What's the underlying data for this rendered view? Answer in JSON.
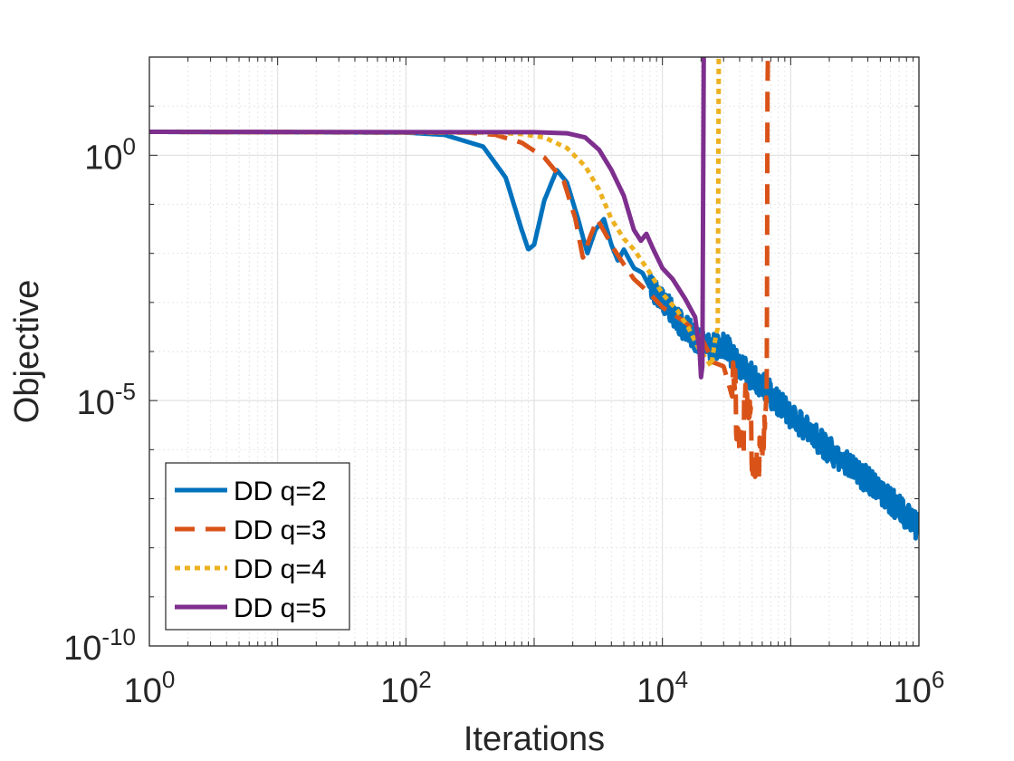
{
  "chart_data": {
    "type": "line",
    "title": "",
    "xlabel": "Iterations",
    "ylabel": "Objective",
    "xscale": "log",
    "yscale": "log",
    "xlim": [
      1,
      1000000
    ],
    "ylim": [
      1e-10,
      100
    ],
    "grid": true,
    "minor_grid": true,
    "legend_position": "bottom-left",
    "x_ticks": [
      {
        "value": 1,
        "base": "10",
        "exp": "0"
      },
      {
        "value": 100,
        "base": "10",
        "exp": "2"
      },
      {
        "value": 10000,
        "base": "10",
        "exp": "4"
      },
      {
        "value": 1000000,
        "base": "10",
        "exp": "6"
      }
    ],
    "y_ticks": [
      {
        "value": 1e-10,
        "base": "10",
        "exp": "-10"
      },
      {
        "value": 1e-05,
        "base": "10",
        "exp": "-5"
      },
      {
        "value": 1,
        "base": "10",
        "exp": "0"
      }
    ],
    "series": [
      {
        "name": "DD q=2",
        "color": "#0072BD",
        "style": "solid",
        "points": [
          [
            1,
            3.0
          ],
          [
            100,
            2.9
          ],
          [
            200,
            2.6
          ],
          [
            400,
            1.5
          ],
          [
            600,
            0.35
          ],
          [
            800,
            0.03
          ],
          [
            900,
            0.012
          ],
          [
            1000,
            0.015
          ],
          [
            1200,
            0.12
          ],
          [
            1500,
            0.5
          ],
          [
            1800,
            0.28
          ],
          [
            2200,
            0.05
          ],
          [
            2600,
            0.01
          ],
          [
            3000,
            0.03
          ],
          [
            3500,
            0.05
          ],
          [
            4000,
            0.015
          ],
          [
            4500,
            0.007
          ],
          [
            5000,
            0.012
          ],
          [
            6000,
            0.005
          ],
          [
            7000,
            0.004
          ],
          [
            8000,
            0.002
          ],
          [
            10000,
            0.001
          ],
          [
            12000,
            0.0006
          ],
          [
            15000,
            0.0003
          ],
          [
            20000,
            0.00015
          ],
          [
            25000,
            0.00012
          ],
          [
            30000,
            0.00015
          ],
          [
            40000,
            5e-05
          ],
          [
            60000,
            2e-05
          ],
          [
            100000,
            5e-06
          ],
          [
            200000,
            1e-06
          ],
          [
            500000,
            1.5e-07
          ],
          [
            1000000,
            2.5e-08
          ]
        ],
        "noise": [
          [
            8000,
            1000000,
            0.2,
            0.012
          ]
        ]
      },
      {
        "name": "DD q=3",
        "color": "#D95319",
        "style": "dashed",
        "points": [
          [
            1,
            3.0
          ],
          [
            300,
            2.9
          ],
          [
            500,
            2.6
          ],
          [
            800,
            1.8
          ],
          [
            1200,
            0.9
          ],
          [
            1700,
            0.3
          ],
          [
            2100,
            0.05
          ],
          [
            2400,
            0.008
          ],
          [
            2700,
            0.02
          ],
          [
            3100,
            0.05
          ],
          [
            3600,
            0.025
          ],
          [
            4200,
            0.012
          ],
          [
            5000,
            0.006
          ],
          [
            6000,
            0.003
          ],
          [
            8000,
            0.0015
          ],
          [
            10000,
            0.0008
          ],
          [
            15000,
            0.0004
          ],
          [
            20000,
            0.0002
          ],
          [
            25000,
            6e-05
          ],
          [
            30000,
            5e-05
          ],
          [
            35000,
            1.2e-05
          ],
          [
            40000,
            5e-06
          ],
          [
            45000,
            3e-06
          ],
          [
            50000,
            1e-06
          ],
          [
            55000,
            2e-06
          ],
          [
            60000,
            1.5e-07
          ],
          [
            65000,
            4e-06
          ],
          [
            66000,
            30
          ],
          [
            66500,
            100
          ]
        ],
        "noise": [
          [
            35000,
            65000,
            0.6,
            0.06
          ]
        ]
      },
      {
        "name": "DD q=4",
        "color": "#EDB120",
        "style": "dotted",
        "points": [
          [
            1,
            3.0
          ],
          [
            500,
            2.9
          ],
          [
            800,
            2.7
          ],
          [
            1200,
            2.3
          ],
          [
            1800,
            1.4
          ],
          [
            2500,
            0.6
          ],
          [
            3200,
            0.2
          ],
          [
            4000,
            0.05
          ],
          [
            5000,
            0.02
          ],
          [
            6000,
            0.012
          ],
          [
            8000,
            0.004
          ],
          [
            10000,
            0.0015
          ],
          [
            13000,
            0.0007
          ],
          [
            16000,
            0.0003
          ],
          [
            19000,
            0.00012
          ],
          [
            22000,
            7e-05
          ],
          [
            24000,
            5e-05
          ],
          [
            26000,
            0.0002
          ],
          [
            27000,
            0.0003
          ],
          [
            27500,
            100
          ]
        ]
      },
      {
        "name": "DD q=5",
        "color": "#7E2F8E",
        "style": "solid",
        "points": [
          [
            1,
            3.0
          ],
          [
            1000,
            2.95
          ],
          [
            1800,
            2.8
          ],
          [
            2500,
            2.3
          ],
          [
            3200,
            1.3
          ],
          [
            4000,
            0.5
          ],
          [
            5000,
            0.15
          ],
          [
            6000,
            0.03
          ],
          [
            6800,
            0.018
          ],
          [
            7500,
            0.025
          ],
          [
            8500,
            0.012
          ],
          [
            10000,
            0.005
          ],
          [
            12000,
            0.003
          ],
          [
            15000,
            0.0012
          ],
          [
            18000,
            0.0005
          ],
          [
            19500,
            0.0001
          ],
          [
            20000,
            3e-05
          ],
          [
            20500,
            5e-05
          ],
          [
            21000,
            100
          ]
        ]
      }
    ]
  }
}
